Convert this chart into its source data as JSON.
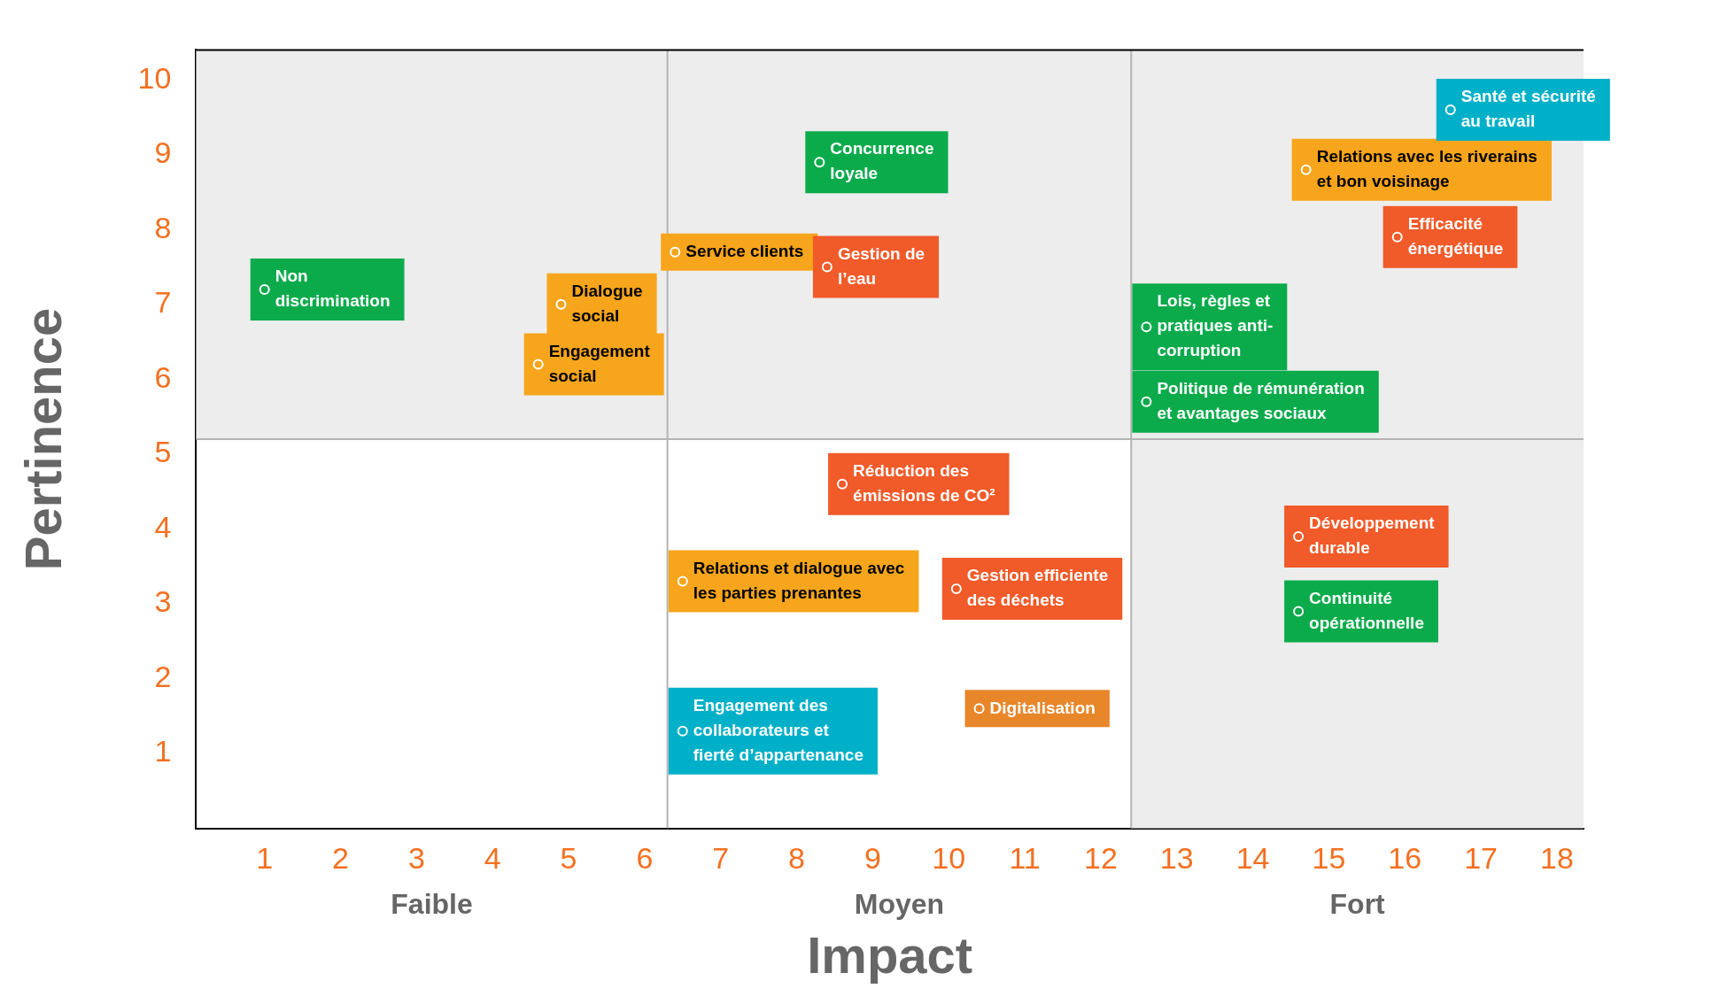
{
  "chart_data": {
    "type": "scatter",
    "xlabel": "Impact",
    "ylabel": "Pertinence",
    "xlim": [
      0.1,
      18.35
    ],
    "ylim": [
      0,
      10.4
    ],
    "xticks": [
      1,
      2,
      3,
      4,
      5,
      6,
      7,
      8,
      9,
      10,
      11,
      12,
      13,
      14,
      15,
      16,
      17,
      18
    ],
    "yticks": [
      1,
      2,
      3,
      4,
      5,
      6,
      7,
      8,
      9,
      10
    ],
    "ref_lines": [
      {
        "axis": "x",
        "value": 6.3,
        "color": "#b3b3b3"
      },
      {
        "axis": "x",
        "value": 12.4,
        "color": "#b3b3b3"
      },
      {
        "axis": "y",
        "value": 5.2,
        "color": "#b3b3b3"
      }
    ],
    "bands": [
      {
        "axis": "y",
        "from": 5.2,
        "to": 10.4,
        "color": "#ededed"
      },
      {
        "axis": "x",
        "from": 12.4,
        "to": 18.35,
        "color": "#ededed"
      }
    ],
    "annotations": [
      "Faible",
      "Moyen",
      "Fort"
    ],
    "series": [
      {
        "color": "#0bab4b",
        "x": [
          1.0,
          8.3,
          12.6,
          12.6,
          14.6
        ],
        "values": [
          7.2,
          8.9,
          6.7,
          5.7,
          2.9
        ],
        "value_labels": [
          "Non\ndiscrimination",
          "Concurrence\nloyale",
          "Lois, règles et\npratiques anti-\ncorruption",
          "Politique de rémunération\net avantages sociaux",
          "Continuité\nopérationnelle"
        ]
      },
      {
        "color": "#f7a51c",
        "x": [
          4.9,
          4.6,
          6.4,
          14.7,
          6.5
        ],
        "values": [
          7.0,
          6.2,
          7.7,
          8.8,
          3.3
        ],
        "value_labels": [
          "Dialogue\nsocial",
          "Engagement\nsocial",
          "Service clients",
          "Relations avec les riverains\net bon voisinage",
          "Relations et dialogue avec\nles parties prenantes"
        ]
      },
      {
        "color": "#f15a29",
        "x": [
          8.4,
          15.9,
          8.6,
          10.1,
          14.6
        ],
        "values": [
          7.5,
          7.9,
          4.6,
          3.2,
          3.9
        ],
        "value_labels": [
          "Gestion de\nl’eau",
          "Efficacité\nénergétique",
          "Réduction des\némissions de CO²",
          "Gestion efficiente\ndes déchets",
          "Développement\ndurable"
        ]
      },
      {
        "color": "#e8862a",
        "x": [
          10.4
        ],
        "values": [
          1.6
        ],
        "value_labels": [
          "Digitalisation"
        ]
      },
      {
        "color": "#00b0c8",
        "x": [
          16.6,
          6.5
        ],
        "values": [
          9.6,
          1.3
        ],
        "value_labels": [
          "Santé et sécurité\nau travail",
          "Engagement des\ncollaborateurs et\nfierté d’appartenance"
        ]
      }
    ]
  }
}
